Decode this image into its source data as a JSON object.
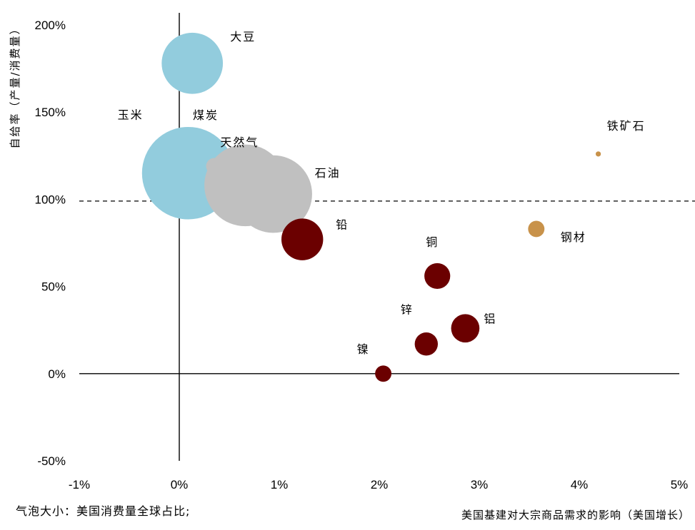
{
  "chart_data": {
    "type": "bubble",
    "xlabel": "美国基建对大宗商品需求的影响（美国增长）",
    "ylabel": "自给率（产量/消费量）",
    "note": "气泡大小：美国消费量全球占比;",
    "xlim": [
      -0.01,
      0.05
    ],
    "ylim": [
      -0.5,
      2.0
    ],
    "x_ticks": [
      -0.01,
      0,
      0.01,
      0.02,
      0.03,
      0.04,
      0.05
    ],
    "x_tick_labels": [
      "-1%",
      "0%",
      "1%",
      "2%",
      "3%",
      "4%",
      "5%"
    ],
    "y_ticks": [
      -0.5,
      0,
      0.5,
      1.0,
      1.5,
      2.0
    ],
    "y_tick_labels": [
      "-50%",
      "0%",
      "50%",
      "100%",
      "150%",
      "200%"
    ],
    "reference_line_y": 0.99,
    "grid": false,
    "colors": {
      "agriculture": "#92CCDD",
      "energy": "#C0C0C0",
      "metals": "#6B0000",
      "steel": "#C8924A"
    },
    "points": [
      {
        "name": "大豆",
        "x": 0.0013,
        "y": 1.78,
        "size": 0.28,
        "group": "agriculture"
      },
      {
        "name": "玉米",
        "x": 0.0009,
        "y": 1.15,
        "size": 0.64,
        "group": "agriculture"
      },
      {
        "name": "煤炭",
        "x": 0.0035,
        "y": 1.19,
        "size": 0.02,
        "group": "energy"
      },
      {
        "name": "天然气",
        "x": 0.0066,
        "y": 1.08,
        "size": 0.5,
        "group": "energy"
      },
      {
        "name": "石油",
        "x": 0.0094,
        "y": 1.03,
        "size": 0.45,
        "group": "energy"
      },
      {
        "name": "铅",
        "x": 0.0123,
        "y": 0.77,
        "size": 0.13,
        "group": "metals"
      },
      {
        "name": "铜",
        "x": 0.0258,
        "y": 0.56,
        "size": 0.05,
        "group": "metals"
      },
      {
        "name": "锌",
        "x": 0.0247,
        "y": 0.17,
        "size": 0.04,
        "group": "metals"
      },
      {
        "name": "铝",
        "x": 0.0286,
        "y": 0.26,
        "size": 0.06,
        "group": "metals"
      },
      {
        "name": "镍",
        "x": 0.0204,
        "y": 0.0,
        "size": 0.02,
        "group": "metals"
      },
      {
        "name": "钢材",
        "x": 0.0357,
        "y": 0.83,
        "size": 0.02,
        "group": "steel"
      },
      {
        "name": "铁矿石",
        "x": 0.0419,
        "y": 1.26,
        "size": 0.002,
        "group": "steel"
      }
    ]
  }
}
